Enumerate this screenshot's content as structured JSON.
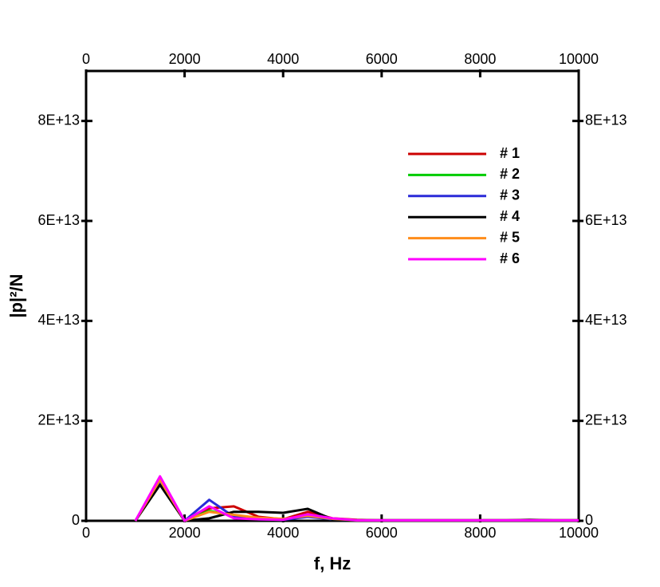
{
  "chart_data": {
    "type": "line",
    "x_label": "f, Hz",
    "y_label": "|p|²/N",
    "x": [
      1000,
      1500,
      2000,
      2500,
      3000,
      3500,
      4000,
      4500,
      5000,
      5500,
      6000,
      6500,
      7000,
      7500,
      8000,
      8500,
      9000,
      9500,
      10000
    ],
    "series": [
      {
        "name": "# 1",
        "color": "#cc0000",
        "values": [
          0,
          8000000000000.0,
          0,
          2500000000000.0,
          2900000000000.0,
          800000000000.0,
          300000000000.0,
          1800000000000.0,
          500000000000.0,
          200000000000.0,
          100000000000.0,
          100000000000.0,
          100000000000.0,
          100000000000.0,
          100000000000.0,
          100000000000.0,
          100000000000.0,
          100000000000.0,
          100000000000.0
        ]
      },
      {
        "name": "# 2",
        "color": "#00cc00",
        "values": [
          0,
          7500000000000.0,
          0,
          2000000000000.0,
          1000000000000.0,
          500000000000.0,
          300000000000.0,
          1000000000000.0,
          300000000000.0,
          100000000000.0,
          100000000000.0,
          100000000000.0,
          100000000000.0,
          100000000000.0,
          100000000000.0,
          100000000000.0,
          100000000000.0,
          100000000000.0,
          100000000000.0
        ]
      },
      {
        "name": "# 3",
        "color": "#2a2ad8",
        "values": [
          0,
          7800000000000.0,
          0,
          4200000000000.0,
          800000000000.0,
          300000000000.0,
          200000000000.0,
          800000000000.0,
          300000000000.0,
          100000000000.0,
          100000000000.0,
          100000000000.0,
          100000000000.0,
          100000000000.0,
          100000000000.0,
          100000000000.0,
          100000000000.0,
          100000000000.0,
          100000000000.0
        ]
      },
      {
        "name": "# 4",
        "color": "#000000",
        "values": [
          0,
          7200000000000.0,
          0,
          500000000000.0,
          1800000000000.0,
          1800000000000.0,
          1600000000000.0,
          2400000000000.0,
          300000000000.0,
          100000000000.0,
          100000000000.0,
          100000000000.0,
          100000000000.0,
          100000000000.0,
          100000000000.0,
          100000000000.0,
          200000000000.0,
          100000000000.0,
          100000000000.0
        ]
      },
      {
        "name": "# 5",
        "color": "#ff8c1a",
        "values": [
          0,
          8200000000000.0,
          0,
          1800000000000.0,
          1200000000000.0,
          600000000000.0,
          400000000000.0,
          1000000000000.0,
          400000000000.0,
          100000000000.0,
          100000000000.0,
          100000000000.0,
          100000000000.0,
          100000000000.0,
          100000000000.0,
          100000000000.0,
          100000000000.0,
          100000000000.0,
          100000000000.0
        ]
      },
      {
        "name": "# 6",
        "color": "#ff00ff",
        "values": [
          0,
          8900000000000.0,
          0,
          2900000000000.0,
          500000000000.0,
          300000000000.0,
          200000000000.0,
          1300000000000.0,
          500000000000.0,
          100000000000.0,
          100000000000.0,
          100000000000.0,
          100000000000.0,
          100000000000.0,
          100000000000.0,
          100000000000.0,
          100000000000.0,
          100000000000.0,
          100000000000.0
        ]
      }
    ],
    "xlim": [
      0,
      10000
    ],
    "xticks": [
      0,
      2000,
      4000,
      6000,
      8000,
      10000
    ],
    "ylim": [
      0,
      90000000000000.0
    ],
    "yticks": [
      0,
      {
        "value": 20000000000000.0,
        "label": "2E+13"
      },
      {
        "value": 40000000000000.0,
        "label": "4E+13"
      },
      {
        "value": 60000000000000.0,
        "label": "6E+13"
      },
      {
        "value": 80000000000000.0,
        "label": "8E+13"
      }
    ]
  }
}
